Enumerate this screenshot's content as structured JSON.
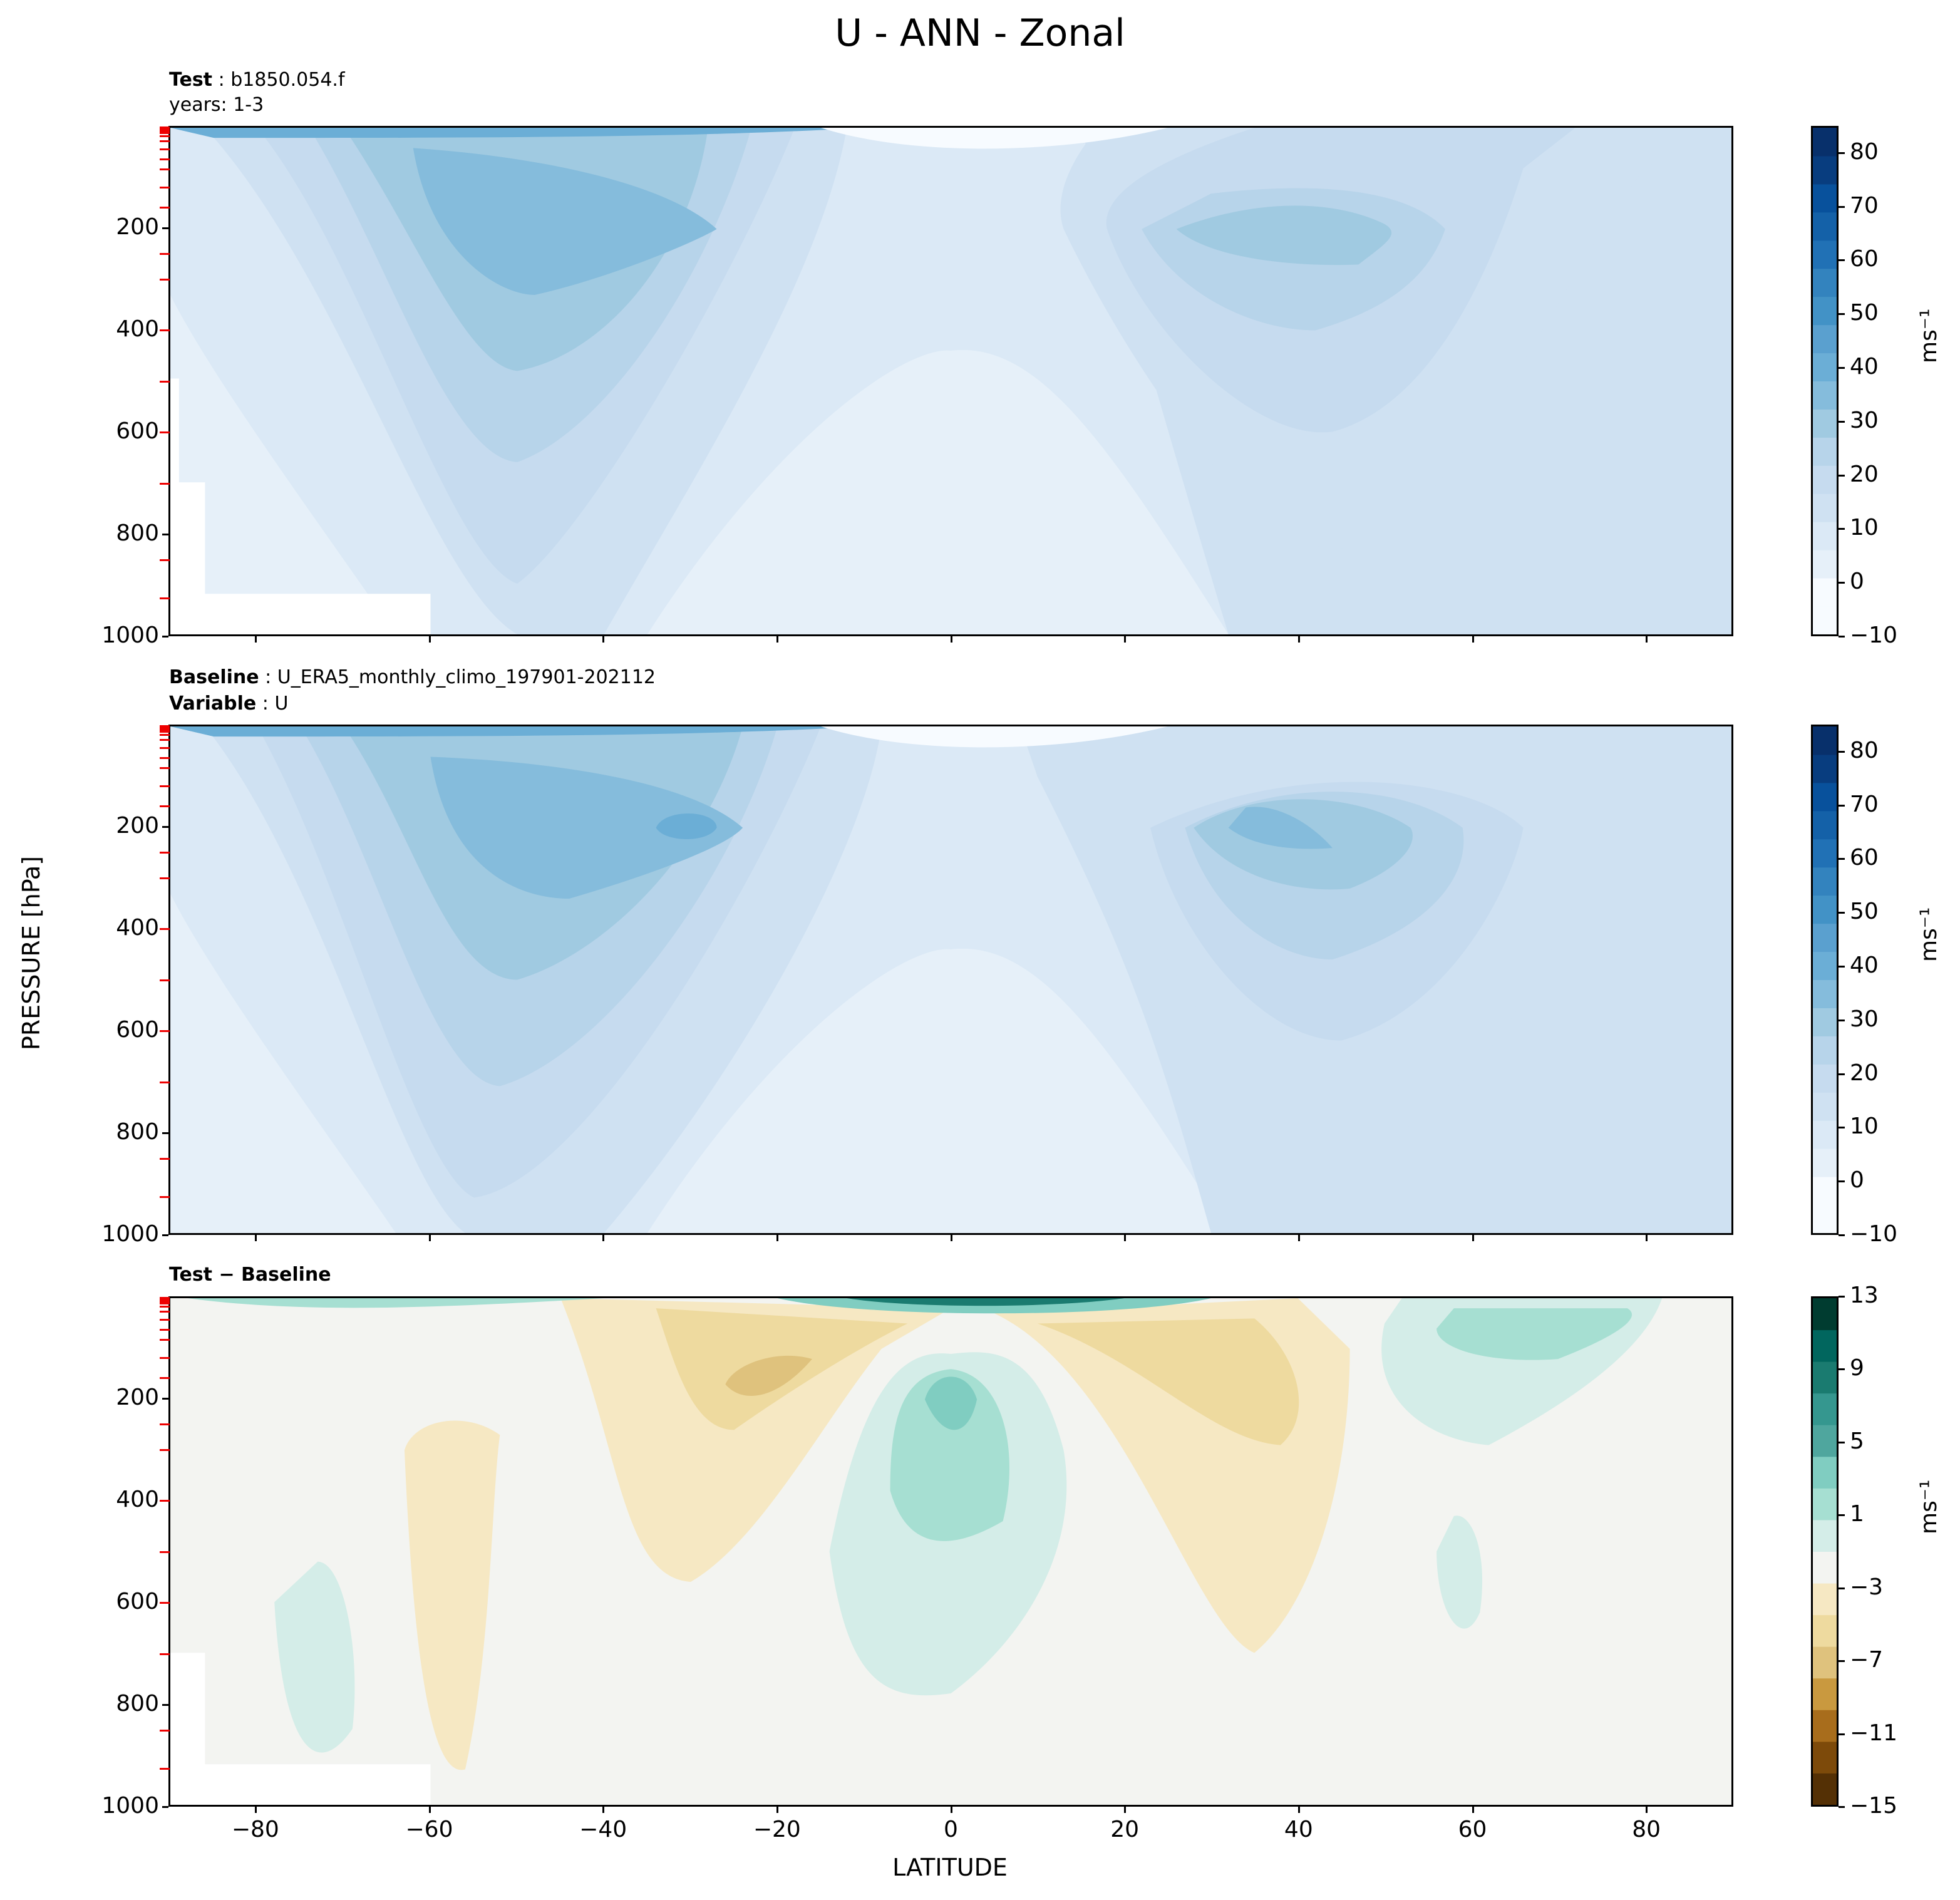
{
  "figure": {
    "title": "U - ANN - Zonal",
    "ylabel": "PRESSURE [hPa]",
    "xlabel": "LATITUDE",
    "colorbar_unit": "ms⁻¹"
  },
  "panels": {
    "test": {
      "label_bold": "Test",
      "label_text": "b1850.054.f",
      "line2": "years: 1-3"
    },
    "baseline": {
      "label_bold": "Baseline",
      "label_text": "U_ERA5_monthly_climo_197901-202112",
      "line2_bold": "Variable",
      "line2_text": "U"
    },
    "diff": {
      "label": "Test − Baseline"
    }
  },
  "chart_data": [
    {
      "type": "contourf",
      "panel": "test",
      "title": "Test: b1850.054.f",
      "xlabel": "LATITUDE",
      "ylabel": "PRESSURE [hPa]",
      "xlim": [
        -90,
        90
      ],
      "ylim": [
        1000,
        0
      ],
      "xticks": [
        -80,
        -60,
        -40,
        -20,
        0,
        20,
        40,
        60,
        80
      ],
      "yticks": [
        200,
        400,
        600,
        800,
        1000
      ],
      "colorbar_label": "ms⁻¹",
      "colorbar_ticks": [
        -10,
        0,
        10,
        20,
        30,
        40,
        50,
        60,
        70,
        80
      ],
      "colorbar_range": [
        -10,
        85
      ],
      "colormap": "Blues",
      "features": [
        {
          "name": "southern jet core",
          "lat": -32,
          "pressure": 200,
          "value": 30
        },
        {
          "name": "northern jet core",
          "lat": 35,
          "pressure": 200,
          "value": 25
        },
        {
          "name": "stratospheric southern jet",
          "lat": -60,
          "pressure": 10,
          "value": 40
        }
      ]
    },
    {
      "type": "contourf",
      "panel": "baseline",
      "title": "Baseline: U_ERA5_monthly_climo_197901-202112",
      "xlabel": "LATITUDE",
      "ylabel": "PRESSURE [hPa]",
      "xlim": [
        -90,
        90
      ],
      "ylim": [
        1000,
        0
      ],
      "xticks": [
        -80,
        -60,
        -40,
        -20,
        0,
        20,
        40,
        60,
        80
      ],
      "yticks": [
        200,
        400,
        600,
        800,
        1000
      ],
      "colorbar_label": "ms⁻¹",
      "colorbar_ticks": [
        -10,
        0,
        10,
        20,
        30,
        40,
        50,
        60,
        70,
        80
      ],
      "colorbar_range": [
        -10,
        85
      ],
      "colormap": "Blues",
      "features": [
        {
          "name": "southern jet core",
          "lat": -30,
          "pressure": 200,
          "value": 35
        },
        {
          "name": "northern jet core",
          "lat": 36,
          "pressure": 200,
          "value": 30
        }
      ]
    },
    {
      "type": "contourf",
      "panel": "diff",
      "title": "Test − Baseline",
      "xlabel": "LATITUDE",
      "ylabel": "PRESSURE [hPa]",
      "xlim": [
        -90,
        90
      ],
      "ylim": [
        1000,
        0
      ],
      "xticks": [
        -80,
        -60,
        -40,
        -20,
        0,
        20,
        40,
        60,
        80
      ],
      "yticks": [
        200,
        400,
        600,
        800,
        1000
      ],
      "colorbar_label": "ms⁻¹",
      "colorbar_ticks": [
        -15,
        -11,
        -7,
        -3,
        1,
        5,
        9,
        13
      ],
      "colorbar_range": [
        -15,
        13
      ],
      "colormap": "BrBG",
      "features": [
        {
          "name": "equatorial positive",
          "lat": 0,
          "pressure": 250,
          "value": 5
        },
        {
          "name": "subtropical negative south",
          "lat": -25,
          "pressure": 150,
          "value": -5
        },
        {
          "name": "subtropical negative north",
          "lat": 30,
          "pressure": 200,
          "value": -3
        },
        {
          "name": "northern high-lat positive",
          "lat": 65,
          "pressure": 100,
          "value": 5
        }
      ]
    }
  ],
  "colors": {
    "blues": [
      "#f7fbff",
      "#e6f0f9",
      "#dbe9f6",
      "#cfe1f2",
      "#c6dbef",
      "#b7d4ea",
      "#a0cae1",
      "#85bcdc",
      "#6baed6",
      "#5aa0cf",
      "#4292c6",
      "#3383be",
      "#2171b5",
      "#1461a8",
      "#08519c",
      "#083d7f",
      "#08306b"
    ],
    "brbg": [
      "#543005",
      "#7d4a0a",
      "#a86d1c",
      "#c9993f",
      "#dfc27d",
      "#eeda9f",
      "#f6e8c3",
      "#f3f4f1",
      "#d4ede8",
      "#a6dfd2",
      "#80cdc1",
      "#4fa69e",
      "#35978f",
      "#1a7b70",
      "#01665e",
      "#003c30"
    ]
  }
}
